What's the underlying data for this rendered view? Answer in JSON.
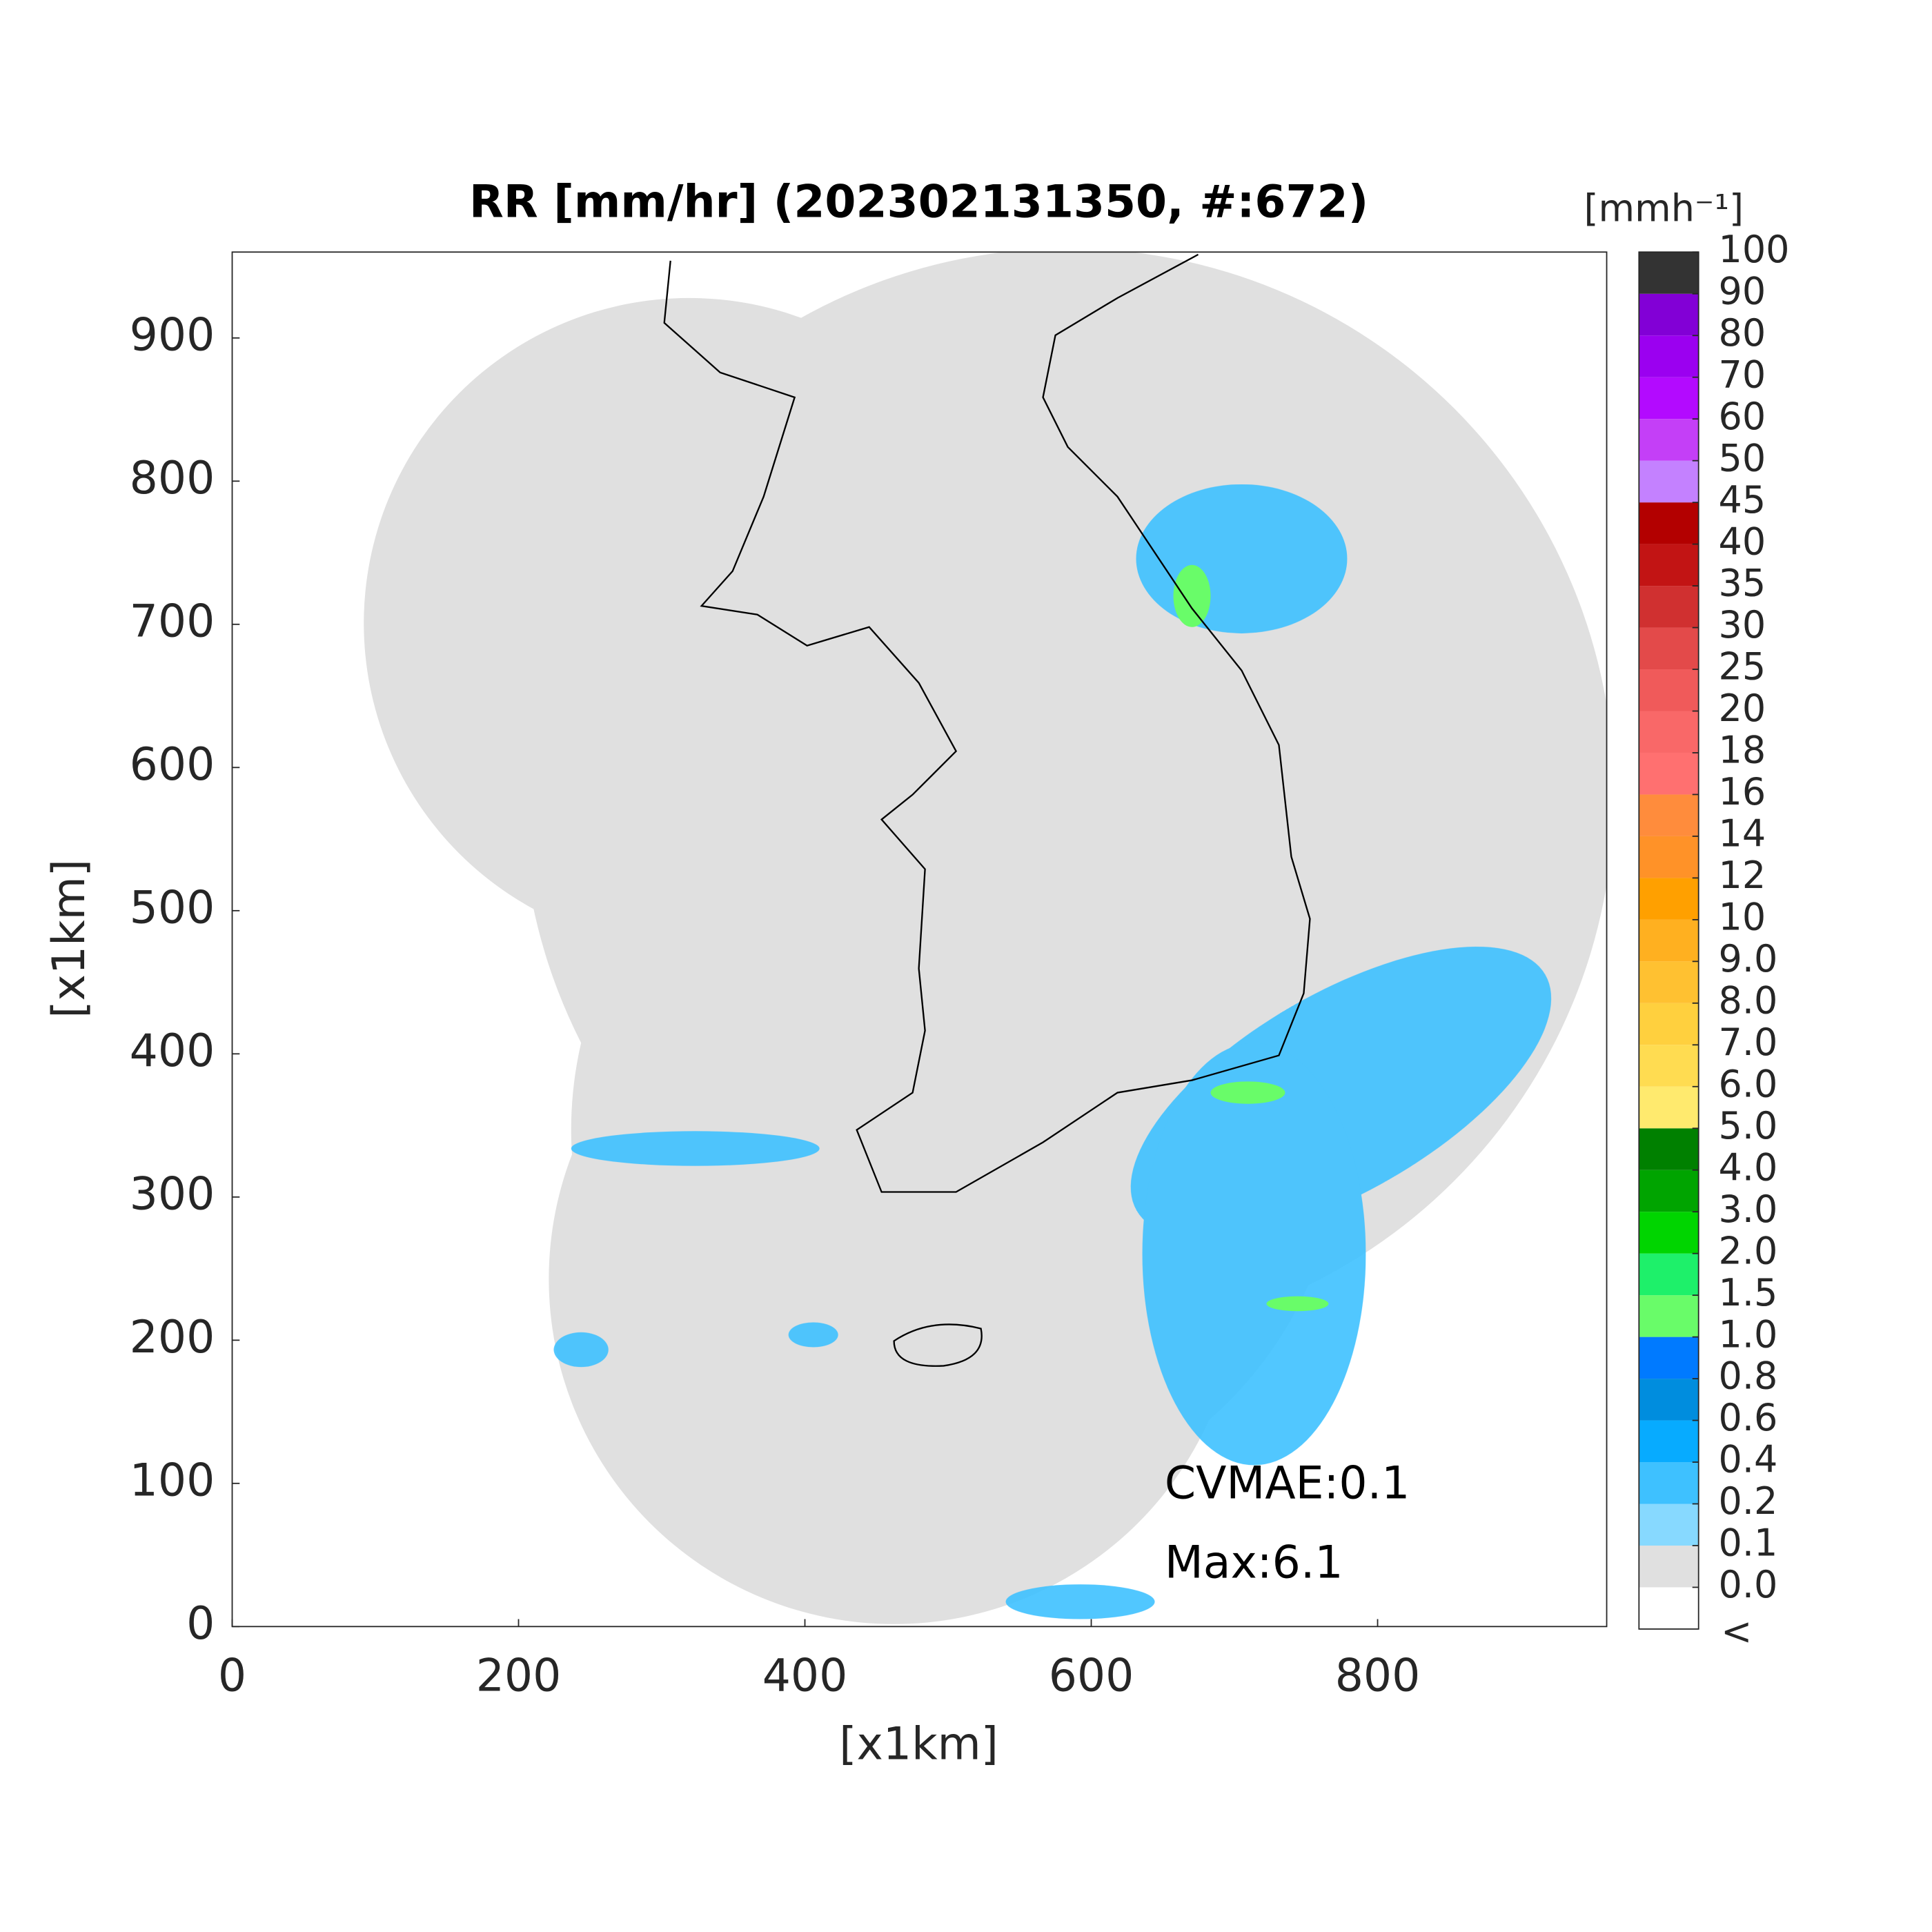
{
  "chart_data": {
    "type": "map",
    "title": "RR [mm/hr] (202302131350, #:672)",
    "xlabel": "[x1km]",
    "ylabel": "[x1km]",
    "xlim": [
      0,
      960
    ],
    "ylim": [
      0,
      960
    ],
    "xticks": [
      0,
      200,
      400,
      600,
      800
    ],
    "yticks": [
      0,
      100,
      200,
      300,
      400,
      500,
      600,
      700,
      800,
      900
    ],
    "annotations": [
      "CVMAE:0.1",
      "Max:6.1"
    ],
    "colorbar": {
      "title": "[mmh⁻¹]",
      "under_label": "<",
      "ticks": [
        {
          "value": 0,
          "label": "0.0"
        },
        0.1,
        0.2,
        0.4,
        0.6,
        0.8,
        {
          "value": 1,
          "label": "1.0"
        },
        1.5,
        {
          "value": 2,
          "label": "2.0"
        },
        {
          "value": 3,
          "label": "3.0"
        },
        {
          "value": 4,
          "label": "4.0"
        },
        {
          "value": 5,
          "label": "5.0"
        },
        {
          "value": 6,
          "label": "6.0"
        },
        {
          "value": 7,
          "label": "7.0"
        },
        {
          "value": 8,
          "label": "8.0"
        },
        {
          "value": 9,
          "label": "9.0"
        },
        10,
        12,
        14,
        16,
        18,
        20,
        25,
        30,
        35,
        40,
        45,
        50,
        60,
        70,
        80,
        90,
        100
      ],
      "colors": [
        "#ffffff",
        "#e0e0e0",
        "#87d9ff",
        "#3ec1ff",
        "#07abff",
        "#008dde",
        "#007aff",
        "#69fc69",
        "#1ef06a",
        "#00d500",
        "#00a400",
        "#008000",
        "#ffea6e",
        "#ffdc51",
        "#ffd03e",
        "#ffc131",
        "#ffb020",
        "#ffa000",
        "#ff9228",
        "#ff8c3c",
        "#ff7070",
        "#f96868",
        "#f05a5a",
        "#e34a4a",
        "#d03030",
        "#c21414",
        "#b30000",
        "#c481ff",
        "#c43ff7",
        "#b30aff",
        "#9b00f0",
        "#8200d6",
        "#333333"
      ]
    }
  }
}
